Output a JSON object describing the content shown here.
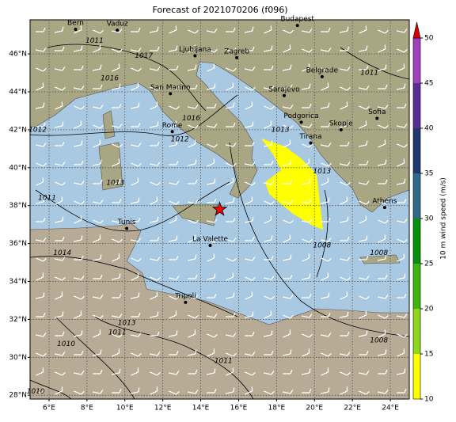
{
  "map": {
    "title": "Forecast of 2021070206 (f096)",
    "lon_range": [
      5,
      25
    ],
    "lat_range": [
      27.8,
      47.8
    ],
    "lon_ticks": [
      {
        "value": 6,
        "label": "6°E"
      },
      {
        "value": 8,
        "label": "8°E"
      },
      {
        "value": 10,
        "label": "10°E"
      },
      {
        "value": 12,
        "label": "12°E"
      },
      {
        "value": 14,
        "label": "14°E"
      },
      {
        "value": 16,
        "label": "16°E"
      },
      {
        "value": 18,
        "label": "18°E"
      },
      {
        "value": 20,
        "label": "20°E"
      },
      {
        "value": 22,
        "label": "22°E"
      },
      {
        "value": 24,
        "label": "24°E"
      }
    ],
    "lat_ticks": [
      {
        "value": 28,
        "label": "28°N"
      },
      {
        "value": 30,
        "label": "30°N"
      },
      {
        "value": 32,
        "label": "32°N"
      },
      {
        "value": 34,
        "label": "34°N"
      },
      {
        "value": 36,
        "label": "36°N"
      },
      {
        "value": 38,
        "label": "38°N"
      },
      {
        "value": 40,
        "label": "40°N"
      },
      {
        "value": 42,
        "label": "42°N"
      },
      {
        "value": 44,
        "label": "44°N"
      },
      {
        "value": 46,
        "label": "46°N"
      }
    ],
    "cities": [
      {
        "name": "Bern",
        "lon": 7.4,
        "lat": 47.3
      },
      {
        "name": "Vaduz",
        "lon": 9.6,
        "lat": 47.25
      },
      {
        "name": "Budapest",
        "lon": 19.1,
        "lat": 47.5
      },
      {
        "name": "Ljubljana",
        "lon": 13.7,
        "lat": 45.9
      },
      {
        "name": "Zagreb",
        "lon": 15.9,
        "lat": 45.8
      },
      {
        "name": "San Marino",
        "lon": 12.4,
        "lat": 43.9
      },
      {
        "name": "Belgrade",
        "lon": 20.4,
        "lat": 44.8
      },
      {
        "name": "Sarajevo",
        "lon": 18.4,
        "lat": 43.8
      },
      {
        "name": "Rome",
        "lon": 12.5,
        "lat": 41.9
      },
      {
        "name": "Podgorica",
        "lon": 19.3,
        "lat": 42.4
      },
      {
        "name": "Skopje",
        "lon": 21.4,
        "lat": 42.0
      },
      {
        "name": "Sofia",
        "lon": 23.3,
        "lat": 42.6
      },
      {
        "name": "Tirana",
        "lon": 19.8,
        "lat": 41.3
      },
      {
        "name": "Athens",
        "lon": 23.7,
        "lat": 37.9
      },
      {
        "name": "Tunis",
        "lon": 10.1,
        "lat": 36.8
      },
      {
        "name": "La Valette",
        "lon": 14.5,
        "lat": 35.9
      },
      {
        "name": "Tripoli",
        "lon": 13.2,
        "lat": 32.9
      }
    ],
    "marker": {
      "lon": 15.0,
      "lat": 37.8
    },
    "isobar_labels": [
      {
        "value": 1017,
        "lon": 11.0,
        "lat": 45.9
      },
      {
        "value": 1016,
        "lon": 9.2,
        "lat": 44.7
      },
      {
        "value": 1016,
        "lon": 13.5,
        "lat": 42.6
      },
      {
        "value": 1012,
        "lon": 5.4,
        "lat": 42.0
      },
      {
        "value": 1012,
        "lon": 12.9,
        "lat": 41.5
      },
      {
        "value": 1011,
        "lon": 5.9,
        "lat": 38.4
      },
      {
        "value": 1014,
        "lon": 6.7,
        "lat": 35.5
      },
      {
        "value": 1011,
        "lon": 22.9,
        "lat": 45.0
      },
      {
        "value": 1013,
        "lon": 9.5,
        "lat": 39.2
      },
      {
        "value": 1008,
        "lon": 20.4,
        "lat": 35.9
      },
      {
        "value": 1008,
        "lon": 23.4,
        "lat": 30.9
      },
      {
        "value": 1013,
        "lon": 10.1,
        "lat": 31.8
      },
      {
        "value": 1011,
        "lon": 9.6,
        "lat": 31.3
      },
      {
        "value": 1010,
        "lon": 6.9,
        "lat": 30.7
      },
      {
        "value": 1011,
        "lon": 15.2,
        "lat": 29.8
      },
      {
        "value": 1010,
        "lon": 5.3,
        "lat": 28.2
      },
      {
        "value": 1011,
        "lon": 8.4,
        "lat": 46.7
      },
      {
        "value": 1013,
        "lon": 18.2,
        "lat": 42.0
      },
      {
        "value": 1013,
        "lon": 20.4,
        "lat": 39.8
      },
      {
        "value": 1008,
        "lon": 23.4,
        "lat": 35.5
      }
    ],
    "colorbar": {
      "label": "10 m wind speed (m/s)",
      "ticks": [
        10,
        15,
        20,
        25,
        30,
        35,
        40,
        45,
        50
      ],
      "colors": [
        "#ffff00",
        "#8fd61e",
        "#3fb60f",
        "#07900a",
        "#2e6a8a",
        "#1f3870",
        "#5a2c98",
        "#a03fbf"
      ],
      "extend_color": "#e00000"
    }
  }
}
